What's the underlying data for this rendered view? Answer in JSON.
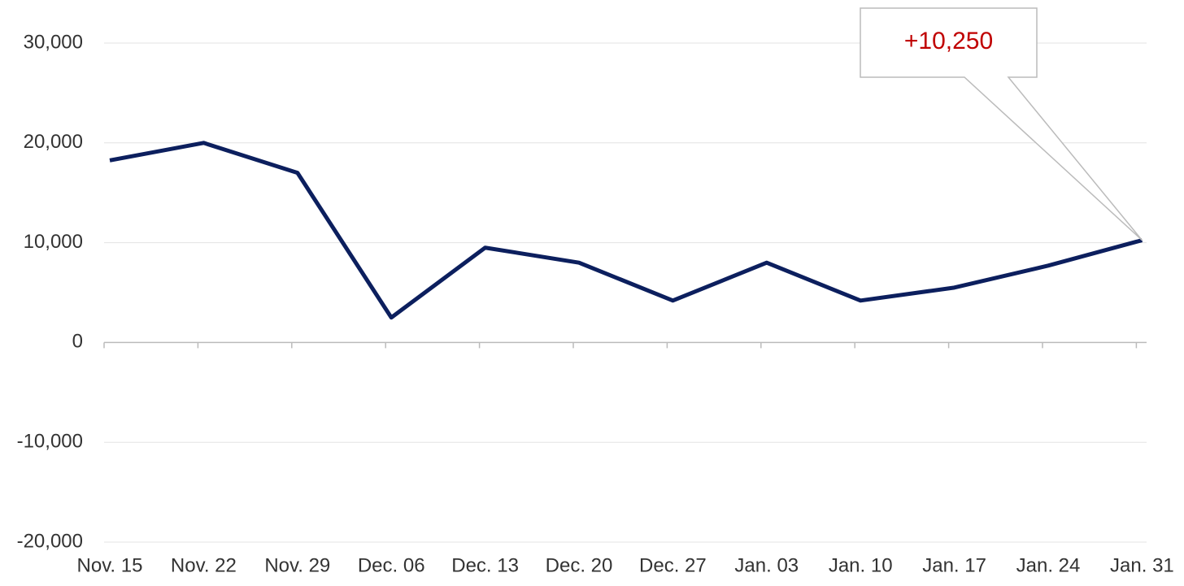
{
  "chart_data": {
    "type": "line",
    "categories": [
      "Nov. 15",
      "Nov. 22",
      "Nov. 29",
      "Dec. 06",
      "Dec. 13",
      "Dec. 20",
      "Dec. 27",
      "Jan. 03",
      "Jan. 10",
      "Jan. 17",
      "Jan. 24",
      "Jan. 31"
    ],
    "values": [
      18250,
      20000,
      17000,
      2500,
      9500,
      8000,
      4200,
      8000,
      4200,
      5500,
      7700,
      10250
    ],
    "value_labels": [
      null,
      null,
      null,
      null,
      null,
      null,
      null,
      null,
      null,
      null,
      null,
      "+10,250"
    ],
    "color": "#0c1f5e",
    "label_color": "#c00000",
    "ylim": [
      -20000,
      30000
    ],
    "yticks": [
      {
        "value": -20000,
        "label": "-20,000"
      },
      {
        "value": -10000,
        "label": "-10,000"
      },
      0,
      {
        "value": 10000,
        "label": "10,000"
      },
      {
        "value": 20000,
        "label": "20,000"
      },
      {
        "value": 30000,
        "label": "30,000"
      }
    ],
    "grid": true
  }
}
